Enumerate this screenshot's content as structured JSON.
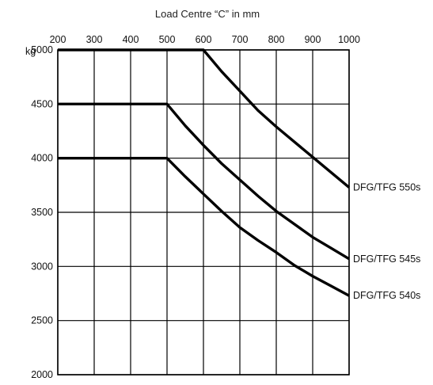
{
  "chart_data": {
    "type": "line",
    "title": "",
    "xlabel": "Load Centre “C” in mm",
    "ylabel": "",
    "y_unit": "kg",
    "xlim": [
      200,
      1000
    ],
    "ylim": [
      2000,
      5000
    ],
    "x_ticks": [
      200,
      300,
      400,
      500,
      600,
      700,
      800,
      900,
      1000
    ],
    "y_ticks": [
      5000,
      4500,
      4000,
      3500,
      3000,
      2500,
      2000
    ],
    "x_axis_position": "top",
    "grid": true,
    "legend": "none",
    "series": [
      {
        "name": "DFG/TFG 550s",
        "x": [
          200,
          600,
          650,
          700,
          750,
          800,
          850,
          900,
          950,
          1000
        ],
        "y": [
          5000,
          5000,
          4800,
          4620,
          4440,
          4290,
          4150,
          4010,
          3870,
          3730
        ]
      },
      {
        "name": "DFG/TFG 545s",
        "x": [
          200,
          500,
          550,
          600,
          650,
          700,
          750,
          800,
          850,
          900,
          950,
          1000
        ],
        "y": [
          4500,
          4500,
          4300,
          4120,
          3950,
          3800,
          3650,
          3510,
          3390,
          3270,
          3170,
          3070
        ]
      },
      {
        "name": "DFG/TFG 540s",
        "x": [
          200,
          500,
          550,
          600,
          650,
          700,
          750,
          800,
          850,
          900,
          950,
          1000
        ],
        "y": [
          4000,
          4000,
          3830,
          3670,
          3510,
          3360,
          3240,
          3130,
          3010,
          2910,
          2820,
          2730
        ]
      }
    ]
  }
}
